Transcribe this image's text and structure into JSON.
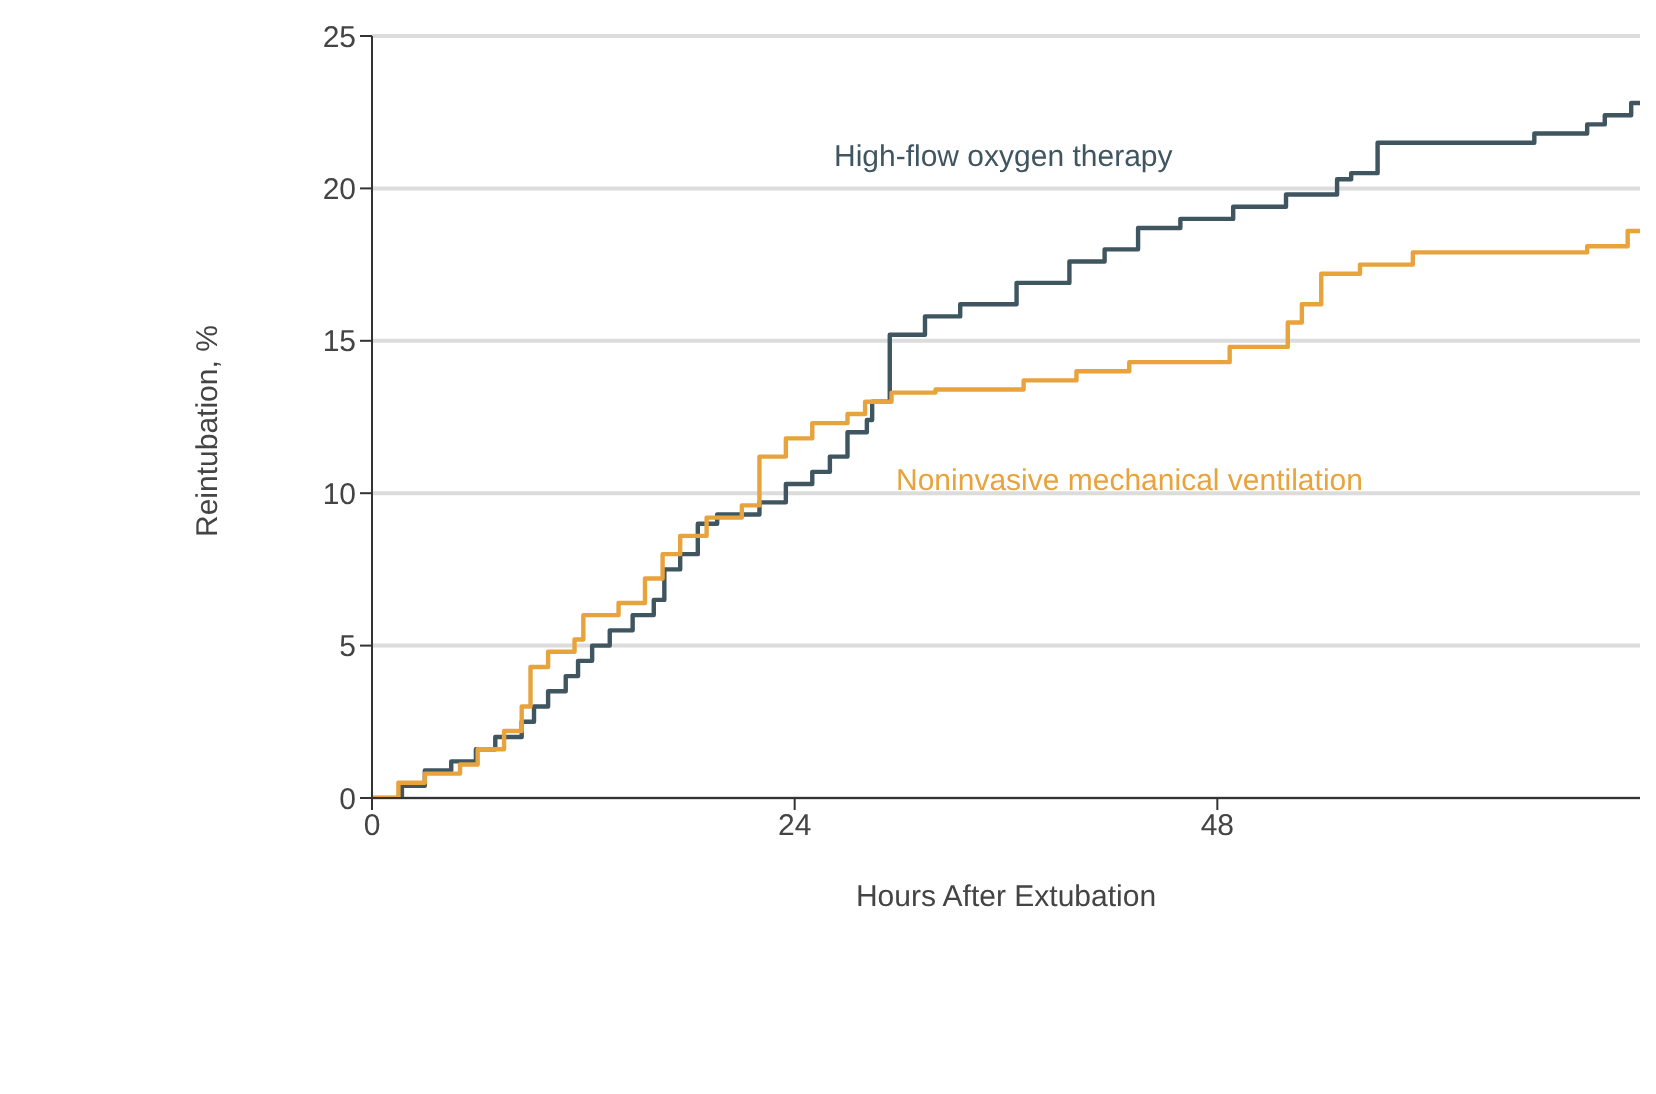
{
  "chart_data": {
    "type": "step",
    "xlabel": "Hours After Extubation",
    "ylabel": "Reintubation, %",
    "xlim": [
      0,
      72
    ],
    "xticks": [
      0,
      24,
      48
    ],
    "ylim": [
      0,
      25
    ],
    "yticks": [
      0,
      5,
      10,
      15,
      20,
      25
    ],
    "grid": "y",
    "marker": "none",
    "line_style": "solid",
    "series": [
      {
        "name": "High-flow oxygen therapy",
        "color": "#3f5560",
        "x": [
          0,
          1.7,
          3,
          4.5,
          5.9,
          7,
          8.5,
          9.2,
          10,
          11,
          11.7,
          12.5,
          13.5,
          14.8,
          16,
          16.6,
          17.5,
          18.5,
          19.6,
          22,
          23.5,
          25,
          26,
          27,
          28.1,
          28.4,
          29.4,
          31.4,
          33.4,
          36.6,
          39.6,
          41.6,
          43.5,
          45.9,
          48.9,
          51.9,
          54.8,
          55.6,
          57.1,
          66,
          69,
          70,
          71.5,
          72
        ],
        "values": [
          0,
          0.4,
          0.9,
          1.2,
          1.6,
          2,
          2.5,
          3,
          3.5,
          4,
          4.5,
          5,
          5.5,
          6,
          6.5,
          7.5,
          8,
          9,
          9.3,
          9.7,
          10.3,
          10.7,
          11.2,
          12,
          12.4,
          13,
          15.2,
          15.8,
          16.2,
          16.9,
          17.6,
          18,
          18.7,
          19,
          19.4,
          19.8,
          20.3,
          20.5,
          21.5,
          21.8,
          22.1,
          22.4,
          22.8,
          22.8
        ]
      },
      {
        "name": "Noninvasive mechanical ventilation",
        "color": "#e8a33d",
        "x": [
          0,
          1.5,
          3,
          5,
          6,
          7.5,
          8.5,
          9,
          10,
          11.5,
          12,
          14,
          15.5,
          16.5,
          17.5,
          19,
          21,
          22,
          23.5,
          25,
          27,
          28,
          29.5,
          32,
          37,
          40,
          43,
          48.7,
          52,
          52.8,
          53.9,
          56.1,
          59.1,
          69,
          71.3,
          72
        ],
        "values": [
          0,
          0.5,
          0.8,
          1.1,
          1.6,
          2.2,
          3,
          4.3,
          4.8,
          5.2,
          6,
          6.4,
          7.2,
          8,
          8.6,
          9.2,
          9.6,
          11.2,
          11.8,
          12.3,
          12.6,
          13,
          13.3,
          13.4,
          13.7,
          14,
          14.3,
          14.8,
          15.6,
          16.2,
          17.2,
          17.5,
          17.9,
          18.1,
          18.6,
          18.6
        ]
      }
    ]
  }
}
